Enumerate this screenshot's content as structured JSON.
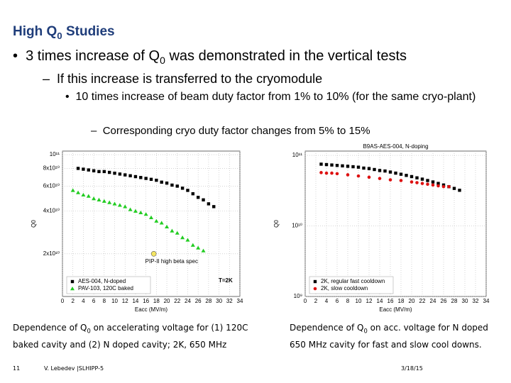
{
  "header": {
    "title": "High Q",
    "title_sub": "0",
    "title_rest": " Studies"
  },
  "bullets": [
    {
      "pre": "3 times increase of Q",
      "sub": "0",
      "post": " was demonstrated in the vertical tests"
    },
    {
      "text": "If this increase is transferred to the cryomodule"
    },
    {
      "text": "10 times increase of beam duty factor from 1% to 10% (for the same cryo-plant)"
    },
    {
      "text": "Corresponding cryo duty factor changes from 5% to 15%"
    }
  ],
  "chart_data": [
    {
      "type": "scatter",
      "xlabel": "Eacc (MV/m)",
      "ylabel": "Q0",
      "log_y": true,
      "grid": true,
      "legend": "lower left",
      "xlim": [
        0,
        34
      ],
      "xticks": [
        0,
        2,
        4,
        6,
        8,
        10,
        12,
        14,
        16,
        18,
        20,
        22,
        24,
        26,
        28,
        30,
        32,
        34
      ],
      "ylim": [
        10000000000.0,
        106000000000.0
      ],
      "yticks": [
        {
          "value": 100000000000.0,
          "label": "10¹¹"
        },
        {
          "value": 80000000000.0,
          "label": "8x10¹⁰"
        },
        {
          "value": 60000000000.0,
          "label": "6x10¹⁰"
        },
        {
          "value": 40000000000.0,
          "label": "4x10¹⁰"
        },
        {
          "value": 20000000000.0,
          "label": "2x10¹⁰"
        }
      ],
      "series": [
        {
          "name": "AES-004, N-doped",
          "color": "#000000",
          "marker": "square",
          "x": [
            3,
            4,
            5,
            6,
            7,
            8,
            9,
            10,
            11,
            12,
            13,
            14,
            15,
            16,
            17,
            18,
            19,
            20,
            21,
            22,
            23,
            24,
            25,
            26,
            27,
            28,
            29
          ],
          "values": [
            80000000000.0,
            79000000000.0,
            78000000000.0,
            77000000000.0,
            76000000000.0,
            76000000000.0,
            75000000000.0,
            74000000000.0,
            73000000000.0,
            72000000000.0,
            71000000000.0,
            70000000000.0,
            69000000000.0,
            68000000000.0,
            67000000000.0,
            66000000000.0,
            64000000000.0,
            63000000000.0,
            61000000000.0,
            60000000000.0,
            58000000000.0,
            56000000000.0,
            53000000000.0,
            50000000000.0,
            48000000000.0,
            45000000000.0,
            43000000000.0
          ]
        },
        {
          "name": "PAV-103, 120C baked",
          "color": "#22cc22",
          "marker": "triangle",
          "x": [
            2,
            3,
            4,
            5,
            6,
            7,
            8,
            9,
            10,
            11,
            12,
            13,
            14,
            15,
            16,
            17,
            18,
            19,
            20,
            21,
            22,
            23,
            24,
            25,
            26,
            27
          ],
          "values": [
            56000000000.0,
            54000000000.0,
            52000000000.0,
            51000000000.0,
            49000000000.0,
            48000000000.0,
            47000000000.0,
            46000000000.0,
            45000000000.0,
            44000000000.0,
            43000000000.0,
            41000000000.0,
            40000000000.0,
            39000000000.0,
            38000000000.0,
            36000000000.0,
            34000000000.0,
            33000000000.0,
            31000000000.0,
            29000000000.0,
            28000000000.0,
            26000000000.0,
            25000000000.0,
            23000000000.0,
            22000000000.0,
            21000000000.0
          ]
        }
      ],
      "spec_point": {
        "label": "PIP-II high beta spec",
        "x": 17.5,
        "y": 20000000000.0,
        "color": "#f5e663"
      },
      "annotation": "T=2K"
    },
    {
      "type": "scatter",
      "title": "B9AS-AES-004, N-doping",
      "xlabel": "Eacc (MV/m)",
      "ylabel": "Q0",
      "log_y": true,
      "grid": true,
      "legend": "lower left",
      "xlim": [
        0,
        34
      ],
      "xticks": [
        0,
        2,
        4,
        6,
        8,
        10,
        12,
        14,
        16,
        18,
        20,
        22,
        24,
        26,
        28,
        30,
        32,
        34
      ],
      "ylim": [
        1000000000.0,
        115000000000.0
      ],
      "yticks": [
        {
          "value": 100000000000.0,
          "label": "10¹¹"
        },
        {
          "value": 10000000000.0,
          "label": "10¹⁰"
        },
        {
          "value": 1000000000.0,
          "label": "10⁹"
        }
      ],
      "series": [
        {
          "name": "2K, regular fast cooldown",
          "color": "#000000",
          "marker": "square",
          "x": [
            3,
            4,
            5,
            6,
            7,
            8,
            9,
            10,
            11,
            12,
            13,
            14,
            15,
            16,
            17,
            18,
            19,
            20,
            21,
            22,
            23,
            24,
            25,
            26,
            27,
            28,
            29
          ],
          "values": [
            75000000000.0,
            74000000000.0,
            73000000000.0,
            72000000000.0,
            71000000000.0,
            70000000000.0,
            69000000000.0,
            68000000000.0,
            66000000000.0,
            65000000000.0,
            63000000000.0,
            61000000000.0,
            60000000000.0,
            58000000000.0,
            56000000000.0,
            54000000000.0,
            52000000000.0,
            50000000000.0,
            48000000000.0,
            46000000000.0,
            44000000000.0,
            42000000000.0,
            40000000000.0,
            38000000000.0,
            36000000000.0,
            34000000000.0,
            32000000000.0
          ]
        },
        {
          "name": "2K, slow cooldown",
          "color": "#dd1111",
          "marker": "circle",
          "x": [
            3,
            4,
            5,
            6,
            8,
            10,
            12,
            14,
            16,
            18,
            20,
            21,
            22,
            23,
            24,
            25,
            26,
            27
          ],
          "values": [
            57000000000.0,
            56000000000.0,
            56000000000.0,
            55000000000.0,
            53000000000.0,
            51000000000.0,
            49000000000.0,
            47000000000.0,
            45000000000.0,
            44000000000.0,
            42000000000.0,
            41000000000.0,
            40000000000.0,
            39000000000.0,
            38000000000.0,
            37000000000.0,
            36000000000.0,
            36000000000.0
          ]
        }
      ]
    }
  ],
  "captions": [
    {
      "pre": "Dependence of Q",
      "sub": "0",
      "post": " on accelerating voltage for (1) 120C baked cavity and (2) N doped cavity;  2K, 650 MHz"
    },
    {
      "pre": "Dependence of Q",
      "sub": "0",
      "post": " on acc. voltage for N doped 650 MHz cavity for fast and slow cool downs."
    }
  ],
  "footer": {
    "page": "11",
    "author": "V. Lebedev |SLHIPP-5",
    "date": "3/18/15"
  }
}
